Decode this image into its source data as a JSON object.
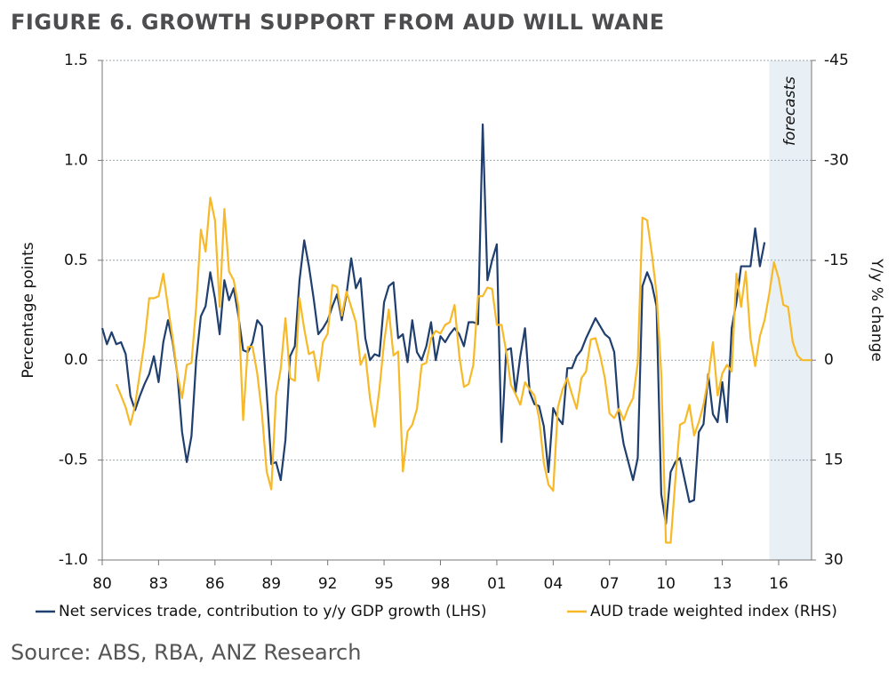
{
  "chart_data": {
    "type": "line",
    "title": "FIGURE 6. GROWTH SUPPORT FROM AUD WILL WANE",
    "source": "Source: ABS, RBA, ANZ Research",
    "y_label": "Percentage points",
    "y2_label": "Y/y % change",
    "forecast_region": {
      "xlim": [
        2015.5,
        2017.75
      ],
      "label": "forecasts"
    },
    "xlim": [
      1980,
      2017.75
    ],
    "xticks": [
      {
        "value": 1980,
        "label": "80"
      },
      {
        "value": 1983,
        "label": "83"
      },
      {
        "value": 1986,
        "label": "86"
      },
      {
        "value": 1989,
        "label": "89"
      },
      {
        "value": 1992,
        "label": "92"
      },
      {
        "value": 1995,
        "label": "95"
      },
      {
        "value": 1998,
        "label": "98"
      },
      {
        "value": 2001,
        "label": "01"
      },
      {
        "value": 2004,
        "label": "04"
      },
      {
        "value": 2007,
        "label": "07"
      },
      {
        "value": 2010,
        "label": "10"
      },
      {
        "value": 2013,
        "label": "13"
      },
      {
        "value": 2016,
        "label": "16"
      }
    ],
    "ylim": [
      -1.0,
      1.5
    ],
    "yticks": [
      {
        "value": -1.0,
        "label": "-1.0"
      },
      -0.5,
      {
        "value": 0.0,
        "label": "0.0"
      },
      0.5,
      {
        "value": 1.0,
        "label": "1.0"
      },
      1.5
    ],
    "y2lim": [
      30,
      -45
    ],
    "y2ticks": [
      30,
      15,
      0,
      -15,
      -30,
      -45
    ],
    "grid": true,
    "x": [
      1980,
      1980.25,
      1980.5,
      1980.75,
      1981,
      1981.25,
      1981.5,
      1981.75,
      1982,
      1982.25,
      1982.5,
      1982.75,
      1983,
      1983.25,
      1983.5,
      1983.75,
      1984,
      1984.25,
      1984.5,
      1984.75,
      1985,
      1985.25,
      1985.5,
      1985.75,
      1986,
      1986.25,
      1986.5,
      1986.75,
      1987,
      1987.25,
      1987.5,
      1987.75,
      1988,
      1988.25,
      1988.5,
      1988.75,
      1989,
      1989.25,
      1989.5,
      1989.75,
      1990,
      1990.25,
      1990.5,
      1990.75,
      1991,
      1991.25,
      1991.5,
      1991.75,
      1992,
      1992.25,
      1992.5,
      1992.75,
      1993,
      1993.25,
      1993.5,
      1993.75,
      1994,
      1994.25,
      1994.5,
      1994.75,
      1995,
      1995.25,
      1995.5,
      1995.75,
      1996,
      1996.25,
      1996.5,
      1996.75,
      1997,
      1997.25,
      1997.5,
      1997.75,
      1998,
      1998.25,
      1998.5,
      1998.75,
      1999,
      1999.25,
      1999.5,
      1999.75,
      2000,
      2000.25,
      2000.5,
      2000.75,
      2001,
      2001.25,
      2001.5,
      2001.75,
      2002,
      2002.25,
      2002.5,
      2002.75,
      2003,
      2003.25,
      2003.5,
      2003.75,
      2004,
      2004.25,
      2004.5,
      2004.75,
      2005,
      2005.25,
      2005.5,
      2005.75,
      2006,
      2006.25,
      2006.5,
      2006.75,
      2007,
      2007.25,
      2007.5,
      2007.75,
      2008,
      2008.25,
      2008.5,
      2008.75,
      2009,
      2009.25,
      2009.5,
      2009.75,
      2010,
      2010.25,
      2010.5,
      2010.75,
      2011,
      2011.25,
      2011.5,
      2011.75,
      2012,
      2012.25,
      2012.5,
      2012.75,
      2013,
      2013.25,
      2013.5,
      2013.75,
      2014,
      2014.25,
      2014.5,
      2014.75,
      2015,
      2015.25,
      2015.5,
      2015.75,
      2016,
      2016.25,
      2016.5,
      2016.75,
      2017,
      2017.25,
      2017.5,
      2017.75
    ],
    "series": [
      {
        "name": "Net services trade, contribution to y/y GDP growth (LHS)",
        "color": "#1f3f6e",
        "values": [
          0.16,
          0.08,
          0.14,
          0.08,
          0.09,
          0.03,
          -0.18,
          -0.25,
          -0.18,
          -0.12,
          -0.07,
          0.02,
          -0.11,
          0.09,
          0.2,
          0.09,
          -0.07,
          -0.36,
          -0.51,
          -0.38,
          0,
          0.22,
          0.27,
          0.44,
          0.31,
          0.13,
          0.4,
          0.3,
          0.36,
          0.22,
          0.05,
          0.04,
          0.09,
          0.2,
          0.17,
          -0.16,
          -0.52,
          -0.51,
          -0.6,
          -0.4,
          0.02,
          0.07,
          0.4,
          0.6,
          0.47,
          0.31,
          0.13,
          0.16,
          0.2,
          0.27,
          0.33,
          0.2,
          0.33,
          0.51,
          0.36,
          0.41,
          0.11,
          0,
          0.03,
          0.02,
          0.29,
          0.37,
          0.39,
          0.11,
          0.13,
          -0.01,
          0.2,
          0.04,
          0,
          0.07,
          0.19,
          0,
          0.12,
          0.09,
          0.13,
          0.16,
          0.13,
          0.07,
          0.19,
          0.19,
          0.18,
          1.18,
          0.4,
          0.5,
          0.58,
          -0.41,
          0.05,
          0.06,
          -0.16,
          0.02,
          0.16,
          -0.16,
          -0.22,
          -0.23,
          -0.33,
          -0.56,
          -0.24,
          -0.29,
          -0.32,
          -0.04,
          -0.04,
          0.02,
          0.05,
          0.11,
          0.16,
          0.21,
          0.17,
          0.13,
          0.11,
          0.04,
          -0.27,
          -0.42,
          -0.51,
          -0.6,
          -0.49,
          0.37,
          0.44,
          0.38,
          0.27,
          -0.67,
          -0.82,
          -0.56,
          -0.51,
          -0.49,
          -0.6,
          -0.71,
          -0.7,
          -0.36,
          -0.32,
          -0.07,
          -0.27,
          -0.31,
          -0.11,
          -0.31,
          0.16,
          0.29,
          0.47,
          0.47,
          0.47,
          0.66,
          0.47,
          0.59,
          null,
          null,
          null,
          null,
          null,
          null,
          null,
          null,
          null,
          null
        ]
      },
      {
        "name": "AUD trade weighted index (RHS)",
        "color": "#f7b928",
        "axis": "y2",
        "values": [
          null,
          null,
          null,
          3.6,
          5.3,
          7.1,
          9.7,
          6.7,
          2.0,
          -2.7,
          -9.3,
          -9.3,
          -9.6,
          -13,
          -8,
          -3.3,
          2,
          5.7,
          0.7,
          0.4,
          -8,
          -19.6,
          -16.3,
          -24.4,
          -21,
          -8,
          -22.7,
          -13.3,
          -12,
          -8,
          9,
          -2,
          -2,
          2,
          8,
          16.7,
          19.4,
          5.3,
          1.3,
          -6.3,
          2.7,
          3.1,
          -9.3,
          -4.7,
          -0.9,
          -1.3,
          3.1,
          -2.7,
          -4,
          -11.3,
          -11,
          -6.7,
          -10.3,
          -8,
          -5.7,
          0.7,
          -0.9,
          5.7,
          10,
          4.4,
          -2.7,
          -7.6,
          -0.7,
          -1.3,
          16.7,
          10.7,
          9.7,
          7.3,
          0.7,
          0.4,
          -3.3,
          -4.4,
          -4,
          -5.3,
          -5.7,
          -8.3,
          -0.7,
          4,
          3.6,
          0.7,
          -9.6,
          -9.6,
          -10.9,
          -10.7,
          -5.3,
          -5.3,
          -1.3,
          3.7,
          5.1,
          6.7,
          3.3,
          4.4,
          5.3,
          8.7,
          15.4,
          18.7,
          19.6,
          7.1,
          4.4,
          2.7,
          5.1,
          7.3,
          2.7,
          1.7,
          -3.1,
          -3.3,
          -0.7,
          2.7,
          8,
          8.7,
          7.3,
          9,
          7.1,
          5.7,
          0.4,
          -21.4,
          -21,
          -16,
          -10,
          2,
          27.4,
          27.4,
          18,
          9.7,
          9.3,
          6.7,
          11.3,
          9.3,
          6.7,
          2.7,
          -2.7,
          5.3,
          2,
          0.7,
          1.7,
          -13,
          -8,
          -13.3,
          -3.3,
          0.9,
          -3.6,
          -6,
          -10,
          -14.7,
          -12.3,
          -8.3,
          -8,
          -2.7,
          -0.7,
          0,
          0,
          0
        ]
      }
    ]
  }
}
